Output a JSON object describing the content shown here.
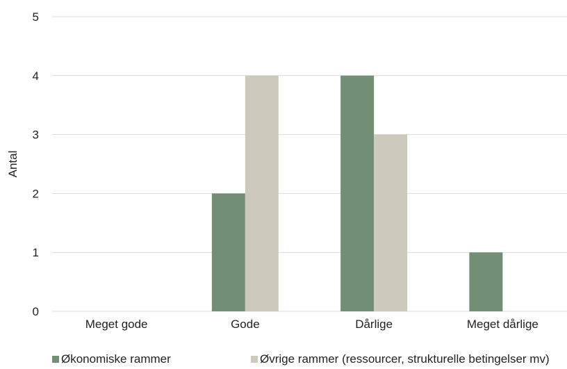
{
  "chart_data": {
    "type": "bar",
    "title": "",
    "xlabel": "",
    "ylabel": "Antal",
    "ylim": [
      0,
      5
    ],
    "yticks": [
      0,
      1,
      2,
      3,
      4,
      5
    ],
    "grid": true,
    "legend_position": "bottom-left",
    "categories": [
      "Meget gode",
      "Gode",
      "Dårlige",
      "Meget dårlige"
    ],
    "series": [
      {
        "name": "Økonomiske rammer",
        "values": [
          0,
          2,
          4,
          1
        ],
        "color": "#728e74"
      },
      {
        "name": "Øvrige rammer (ressourcer, strukturelle betingelser mv)",
        "values": [
          0,
          4,
          3,
          0
        ],
        "color": "#cdc9bd"
      }
    ]
  }
}
